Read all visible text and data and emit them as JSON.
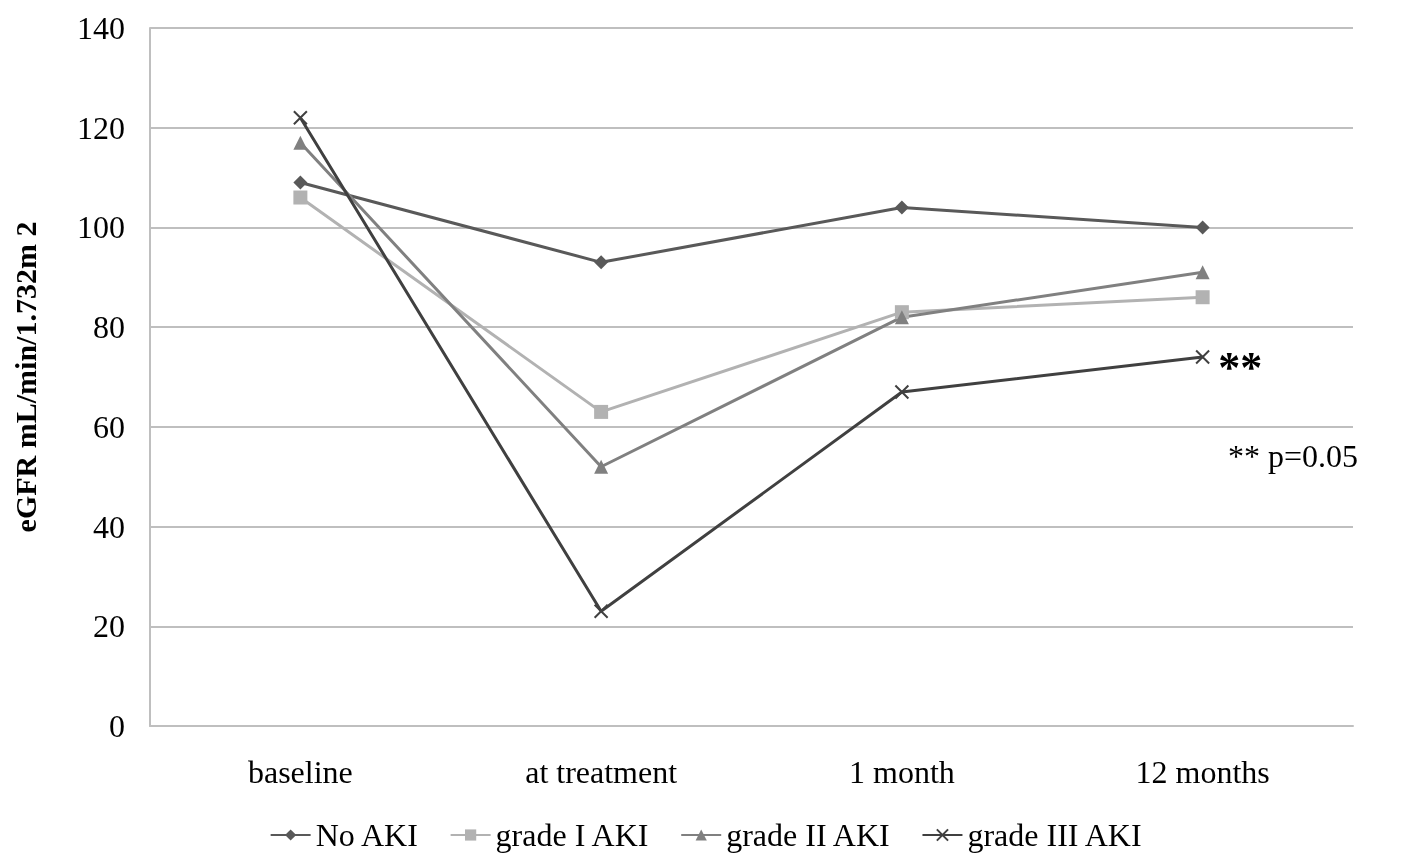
{
  "chart_data": {
    "type": "line",
    "ylabel": "eGFR mL/min/1.732m 2",
    "categories": [
      "baseline",
      "at treatment",
      "1 month",
      "12 months"
    ],
    "series": [
      {
        "name": "No AKI",
        "color": "#595959",
        "marker": "diamond",
        "values": [
          109,
          93,
          104,
          100
        ]
      },
      {
        "name": "grade I AKI",
        "color": "#b2b2b2",
        "marker": "square",
        "values": [
          106,
          63,
          83,
          86
        ]
      },
      {
        "name": "grade II AKI",
        "color": "#808080",
        "marker": "triangle",
        "values": [
          117,
          52,
          82,
          91
        ]
      },
      {
        "name": "grade III AKI",
        "color": "#404040",
        "marker": "cross",
        "values": [
          122,
          23,
          67,
          74
        ]
      }
    ],
    "ylim": [
      0,
      140
    ],
    "yticks": [
      0,
      20,
      40,
      60,
      80,
      100,
      120,
      140
    ],
    "grid": "y",
    "legend": "bottom",
    "line_style": "solid",
    "annotations": [
      {
        "text": "**",
        "x": "12 months",
        "y": 74
      },
      "** p=0.05"
    ]
  }
}
